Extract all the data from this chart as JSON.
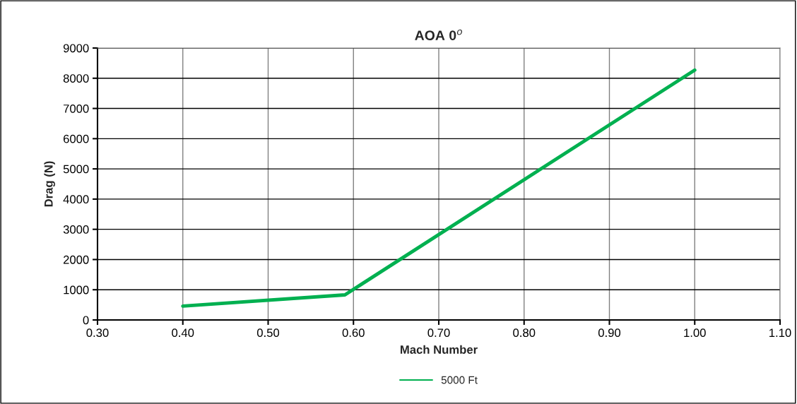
{
  "chart_data": {
    "type": "line",
    "title": "AOA 0$^{o}$",
    "xlabel": "Mach Number",
    "ylabel": "Drag (N)",
    "series": [
      {
        "name": "5000 Ft",
        "color": "#00b050",
        "x": [
          0.4,
          0.59,
          1.0
        ],
        "values": [
          460,
          830,
          8270
        ]
      }
    ],
    "xlim": [
      0.3,
      1.1
    ],
    "xticks": [
      {
        "value": 0.3,
        "label": "0.30"
      },
      {
        "value": 0.4,
        "label": "0.40"
      },
      {
        "value": 0.5,
        "label": "0.50"
      },
      {
        "value": 0.6,
        "label": "0.60"
      },
      {
        "value": 0.7,
        "label": "0.70"
      },
      {
        "value": 0.8,
        "label": "0.80"
      },
      {
        "value": 0.9,
        "label": "0.90"
      },
      {
        "value": 1.0,
        "label": "1.00"
      },
      {
        "value": 1.1,
        "label": "1.10"
      }
    ],
    "ylim": [
      0,
      9000
    ],
    "yticks": [
      0,
      1000,
      2000,
      3000,
      4000,
      5000,
      6000,
      7000,
      8000,
      9000
    ],
    "grid": true,
    "legend": "bottom",
    "marker": "none",
    "line_style": "solid"
  }
}
